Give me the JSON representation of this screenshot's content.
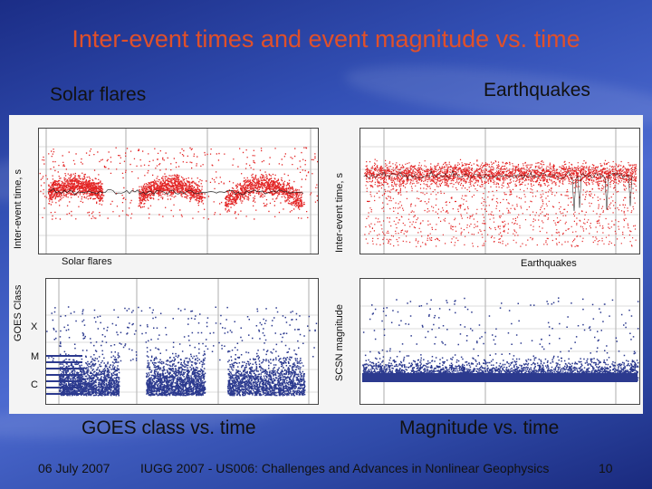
{
  "slide": {
    "title": "Inter-event times and event magnitude vs. time",
    "left_heading": "Solar flares",
    "right_heading": "Earthquakes",
    "left_caption": "GOES class vs. time",
    "right_caption": "Magnitude vs. time"
  },
  "footer": {
    "date": "06 July 2007",
    "conference": "IUGG 2007 - US006:  Challenges and Advances in Nonlinear Geophysics",
    "page": "10"
  },
  "figure": {
    "top_left": {
      "ylabel": "Inter-event time, s",
      "label": "Solar flares"
    },
    "top_right": {
      "ylabel": "Inter-event time, s",
      "label": "Earthquakes"
    },
    "bottom_left": {
      "ylabel": "GOES Class",
      "classes": [
        "X",
        "M",
        "C"
      ]
    },
    "bottom_right": {
      "ylabel": "SCSN magnitude"
    }
  },
  "colors": {
    "interevent": "#e32626",
    "magnitude": "#2c3a8f",
    "title": "#e0502a"
  }
}
